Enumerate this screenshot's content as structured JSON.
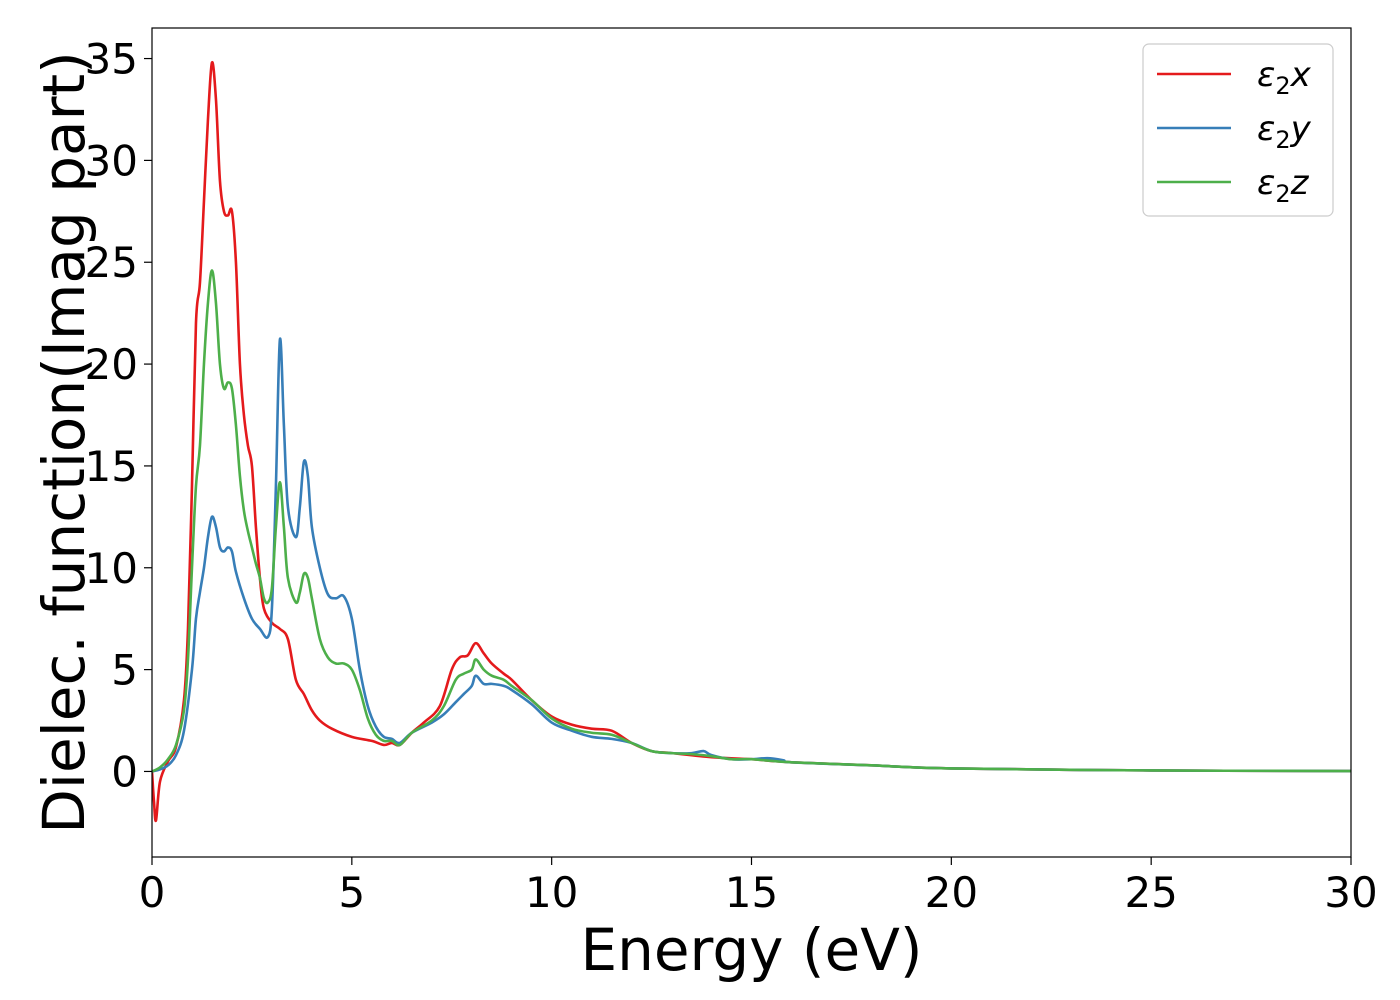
{
  "chart_data": {
    "type": "line",
    "xlabel": "Energy (eV)",
    "ylabel": "Dielec. function(Imag part)",
    "xlim": [
      0,
      30
    ],
    "ylim": [
      -4.2,
      36.5
    ],
    "xticks": [
      0,
      5,
      10,
      15,
      20,
      25,
      30
    ],
    "yticks": [
      0,
      5,
      10,
      15,
      20,
      25,
      30,
      35
    ],
    "grid": false,
    "legend_position": "top-right",
    "series": [
      {
        "name": "ε2x",
        "label_base": "ε",
        "label_sub": "2",
        "label_tail": "x",
        "color": "#e41a1c",
        "points": [
          [
            0,
            0
          ],
          [
            0.05,
            -1.5
          ],
          [
            0.1,
            -2.4
          ],
          [
            0.2,
            -0.5
          ],
          [
            0.4,
            0.5
          ],
          [
            0.6,
            1.2
          ],
          [
            0.8,
            3.5
          ],
          [
            0.9,
            7
          ],
          [
            1.0,
            14
          ],
          [
            1.1,
            22
          ],
          [
            1.2,
            24
          ],
          [
            1.3,
            28
          ],
          [
            1.4,
            32
          ],
          [
            1.5,
            34.8
          ],
          [
            1.6,
            33
          ],
          [
            1.7,
            29
          ],
          [
            1.8,
            27.5
          ],
          [
            1.9,
            27.3
          ],
          [
            2.0,
            27.5
          ],
          [
            2.1,
            25
          ],
          [
            2.2,
            20
          ],
          [
            2.3,
            17.5
          ],
          [
            2.4,
            16
          ],
          [
            2.5,
            15
          ],
          [
            2.6,
            12
          ],
          [
            2.7,
            9.5
          ],
          [
            2.8,
            8
          ],
          [
            3.0,
            7.3
          ],
          [
            3.2,
            7.0
          ],
          [
            3.4,
            6.5
          ],
          [
            3.6,
            4.5
          ],
          [
            3.8,
            3.8
          ],
          [
            4.0,
            3
          ],
          [
            4.2,
            2.5
          ],
          [
            4.5,
            2.1
          ],
          [
            5.0,
            1.7
          ],
          [
            5.5,
            1.5
          ],
          [
            5.8,
            1.3
          ],
          [
            6.0,
            1.4
          ],
          [
            6.2,
            1.3
          ],
          [
            6.5,
            1.9
          ],
          [
            6.8,
            2.4
          ],
          [
            7.2,
            3.2
          ],
          [
            7.5,
            5.0
          ],
          [
            7.7,
            5.6
          ],
          [
            7.9,
            5.7
          ],
          [
            8.1,
            6.3
          ],
          [
            8.3,
            5.8
          ],
          [
            8.5,
            5.3
          ],
          [
            8.8,
            4.8
          ],
          [
            9.0,
            4.5
          ],
          [
            9.5,
            3.5
          ],
          [
            10.0,
            2.7
          ],
          [
            10.5,
            2.3
          ],
          [
            11.0,
            2.1
          ],
          [
            11.5,
            2.0
          ],
          [
            12.0,
            1.4
          ],
          [
            12.5,
            1.0
          ],
          [
            13.0,
            0.9
          ],
          [
            14.0,
            0.7
          ],
          [
            15.0,
            0.6
          ],
          [
            16.0,
            0.45
          ],
          [
            18.0,
            0.3
          ],
          [
            20.0,
            0.15
          ],
          [
            25.0,
            0.05
          ],
          [
            30.0,
            0.02
          ]
        ]
      },
      {
        "name": "ε2y",
        "label_base": "ε",
        "label_sub": "2",
        "label_tail": "y",
        "color": "#377eb8",
        "points": [
          [
            0,
            0
          ],
          [
            0.2,
            0.1
          ],
          [
            0.4,
            0.3
          ],
          [
            0.6,
            0.8
          ],
          [
            0.8,
            2
          ],
          [
            1.0,
            5
          ],
          [
            1.1,
            7.5
          ],
          [
            1.2,
            8.8
          ],
          [
            1.3,
            10
          ],
          [
            1.4,
            11.5
          ],
          [
            1.5,
            12.5
          ],
          [
            1.6,
            12
          ],
          [
            1.7,
            11
          ],
          [
            1.8,
            10.8
          ],
          [
            1.9,
            11
          ],
          [
            2.0,
            10.8
          ],
          [
            2.1,
            9.8
          ],
          [
            2.3,
            8.5
          ],
          [
            2.5,
            7.5
          ],
          [
            2.7,
            7.0
          ],
          [
            2.9,
            6.6
          ],
          [
            3.0,
            8
          ],
          [
            3.1,
            14
          ],
          [
            3.2,
            21.2
          ],
          [
            3.3,
            17
          ],
          [
            3.4,
            13
          ],
          [
            3.6,
            11.5
          ],
          [
            3.7,
            13
          ],
          [
            3.8,
            15.2
          ],
          [
            3.9,
            14.5
          ],
          [
            4.0,
            12
          ],
          [
            4.2,
            10
          ],
          [
            4.4,
            8.7
          ],
          [
            4.6,
            8.5
          ],
          [
            4.8,
            8.6
          ],
          [
            5.0,
            7.5
          ],
          [
            5.2,
            5
          ],
          [
            5.4,
            3.2
          ],
          [
            5.6,
            2.2
          ],
          [
            5.8,
            1.7
          ],
          [
            6.0,
            1.6
          ],
          [
            6.2,
            1.4
          ],
          [
            6.5,
            1.9
          ],
          [
            7.0,
            2.4
          ],
          [
            7.3,
            2.8
          ],
          [
            7.6,
            3.4
          ],
          [
            7.8,
            3.8
          ],
          [
            8.0,
            4.2
          ],
          [
            8.1,
            4.7
          ],
          [
            8.3,
            4.3
          ],
          [
            8.5,
            4.3
          ],
          [
            8.8,
            4.2
          ],
          [
            9.0,
            4.0
          ],
          [
            9.5,
            3.3
          ],
          [
            10.0,
            2.4
          ],
          [
            10.5,
            2.0
          ],
          [
            11.0,
            1.7
          ],
          [
            11.5,
            1.6
          ],
          [
            12.0,
            1.4
          ],
          [
            12.5,
            1.0
          ],
          [
            13.0,
            0.9
          ],
          [
            13.5,
            0.9
          ],
          [
            13.8,
            1.0
          ],
          [
            14.0,
            0.8
          ],
          [
            14.5,
            0.6
          ],
          [
            15.0,
            0.6
          ],
          [
            15.4,
            0.65
          ],
          [
            15.8,
            0.55
          ],
          [
            16.0,
            0.45
          ],
          [
            18.0,
            0.3
          ],
          [
            20.0,
            0.15
          ],
          [
            25.0,
            0.05
          ],
          [
            30.0,
            0.02
          ]
        ]
      },
      {
        "name": "ε2z",
        "label_base": "ε",
        "label_sub": "2",
        "label_tail": "z",
        "color": "#4daf4a",
        "points": [
          [
            0,
            0
          ],
          [
            0.2,
            0.2
          ],
          [
            0.4,
            0.6
          ],
          [
            0.6,
            1.3
          ],
          [
            0.8,
            3
          ],
          [
            0.9,
            5.5
          ],
          [
            1.0,
            10
          ],
          [
            1.1,
            14
          ],
          [
            1.2,
            16
          ],
          [
            1.3,
            20
          ],
          [
            1.4,
            23
          ],
          [
            1.5,
            24.6
          ],
          [
            1.6,
            23
          ],
          [
            1.7,
            20
          ],
          [
            1.8,
            18.8
          ],
          [
            1.9,
            19.1
          ],
          [
            2.0,
            18.8
          ],
          [
            2.1,
            17
          ],
          [
            2.2,
            14.5
          ],
          [
            2.3,
            12.8
          ],
          [
            2.4,
            11.8
          ],
          [
            2.5,
            11
          ],
          [
            2.6,
            10.2
          ],
          [
            2.7,
            9.5
          ],
          [
            2.8,
            8.5
          ],
          [
            2.9,
            8.3
          ],
          [
            3.0,
            9
          ],
          [
            3.1,
            12
          ],
          [
            3.2,
            14.2
          ],
          [
            3.3,
            12
          ],
          [
            3.4,
            9.5
          ],
          [
            3.6,
            8.3
          ],
          [
            3.7,
            8.8
          ],
          [
            3.8,
            9.7
          ],
          [
            3.9,
            9.5
          ],
          [
            4.0,
            8.5
          ],
          [
            4.2,
            6.5
          ],
          [
            4.4,
            5.6
          ],
          [
            4.6,
            5.3
          ],
          [
            4.8,
            5.3
          ],
          [
            5.0,
            5.0
          ],
          [
            5.2,
            4.0
          ],
          [
            5.4,
            2.6
          ],
          [
            5.6,
            1.8
          ],
          [
            5.8,
            1.5
          ],
          [
            6.0,
            1.5
          ],
          [
            6.2,
            1.3
          ],
          [
            6.5,
            1.9
          ],
          [
            7.0,
            2.5
          ],
          [
            7.3,
            3.2
          ],
          [
            7.6,
            4.5
          ],
          [
            7.8,
            4.8
          ],
          [
            8.0,
            5.0
          ],
          [
            8.1,
            5.5
          ],
          [
            8.3,
            5.0
          ],
          [
            8.5,
            4.7
          ],
          [
            8.8,
            4.5
          ],
          [
            9.0,
            4.2
          ],
          [
            9.5,
            3.5
          ],
          [
            10.0,
            2.6
          ],
          [
            10.5,
            2.1
          ],
          [
            11.0,
            1.9
          ],
          [
            11.5,
            1.8
          ],
          [
            12.0,
            1.4
          ],
          [
            12.5,
            1.0
          ],
          [
            13.0,
            0.9
          ],
          [
            13.5,
            0.85
          ],
          [
            14.0,
            0.75
          ],
          [
            14.5,
            0.6
          ],
          [
            15.0,
            0.6
          ],
          [
            16.0,
            0.45
          ],
          [
            18.0,
            0.3
          ],
          [
            20.0,
            0.15
          ],
          [
            25.0,
            0.05
          ],
          [
            30.0,
            0.02
          ]
        ]
      }
    ]
  }
}
